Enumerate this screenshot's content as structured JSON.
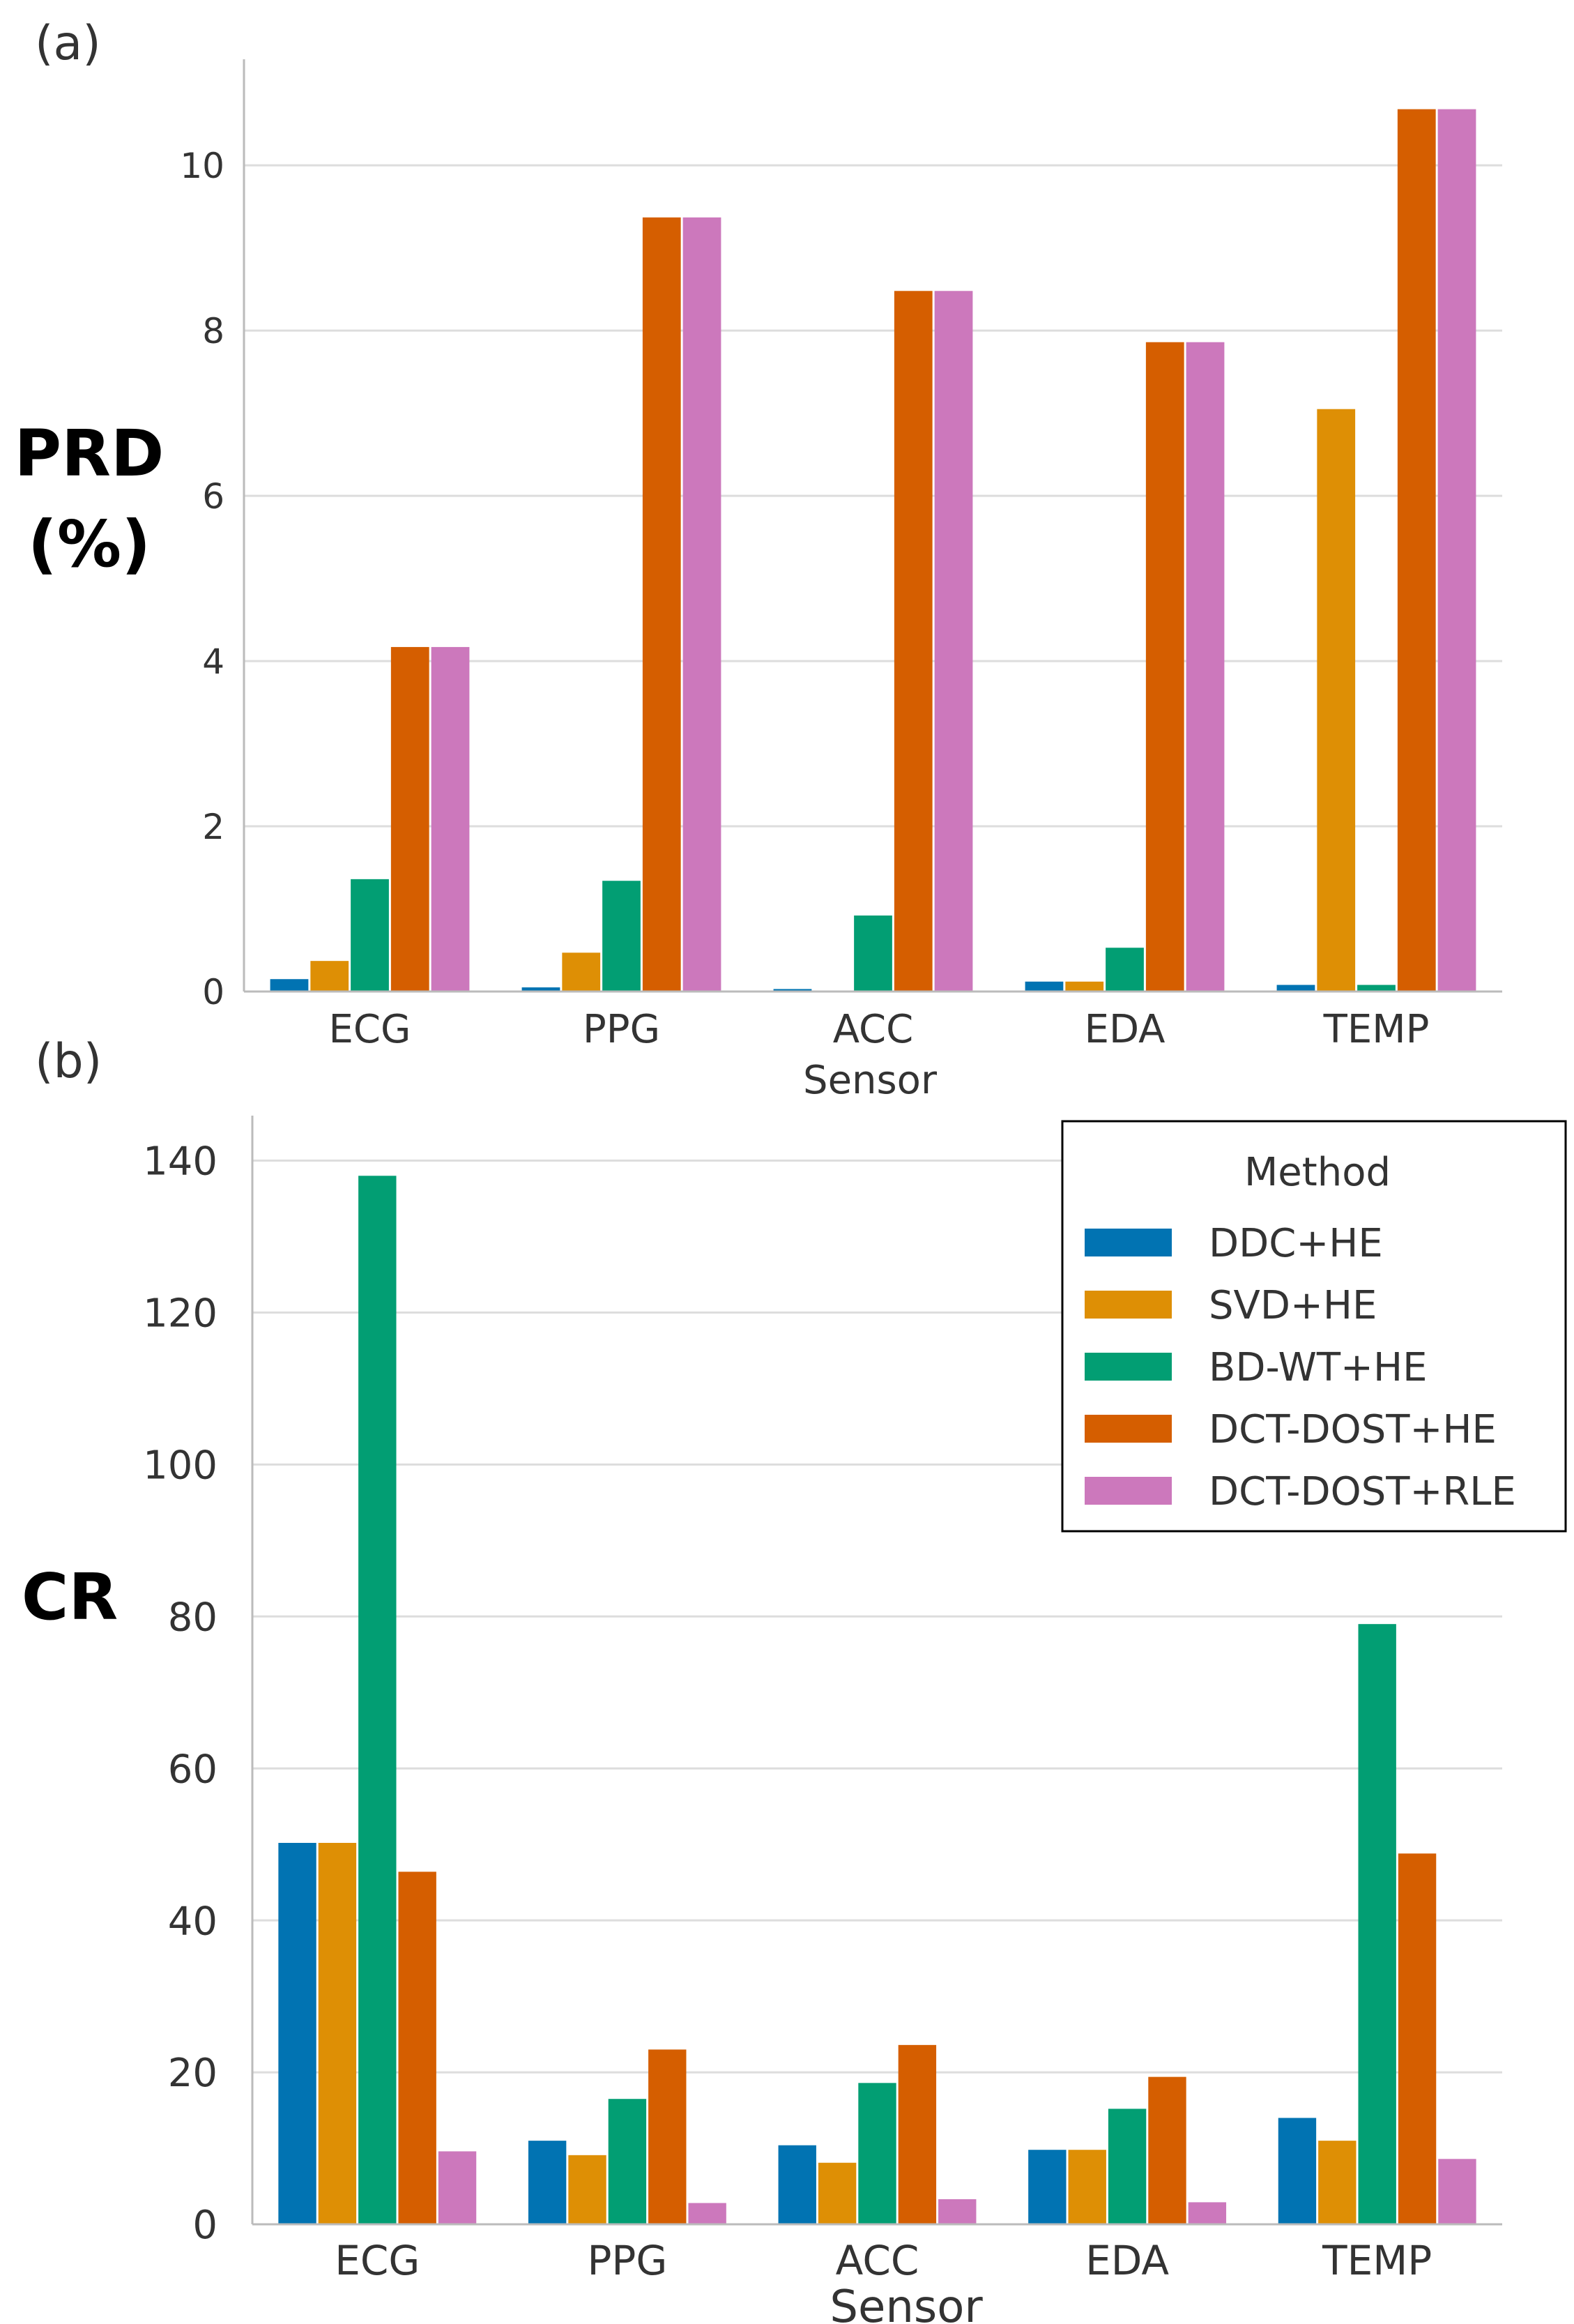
{
  "colors": {
    "DDC+HE": "#0173b2",
    "SVD+HE": "#de8f05",
    "BD-WT+HE": "#029e73",
    "DCT-DOST+HE": "#d55e00",
    "DCT-DOST+RLE": "#cc78bc",
    "grid": "#dddddd",
    "axis": "#bbbbbb"
  },
  "legend": {
    "title": "Method",
    "entries": [
      "DDC+HE",
      "SVD+HE",
      "BD-WT+HE",
      "DCT-DOST+HE",
      "DCT-DOST+RLE"
    ]
  },
  "chart_data": [
    {
      "panel_label": "(a)",
      "type": "bar",
      "ylabel_line1": "PRD",
      "ylabel_line2": "(%)",
      "xlabel": "Sensor",
      "categories": [
        "ECG",
        "PPG",
        "ACC",
        "EDA",
        "TEMP"
      ],
      "ylim": [
        0,
        11.2
      ],
      "yticks": [
        0,
        2,
        4,
        6,
        8,
        10
      ],
      "grid": "horizontal",
      "series": [
        {
          "name": "DDC+HE",
          "values": [
            0.15,
            0.05,
            0.03,
            0.12,
            0.08
          ]
        },
        {
          "name": "SVD+HE",
          "values": [
            0.37,
            0.47,
            0.0,
            0.12,
            7.05
          ]
        },
        {
          "name": "BD-WT+HE",
          "values": [
            1.36,
            1.34,
            0.92,
            0.53,
            0.08
          ]
        },
        {
          "name": "DCT-DOST+HE",
          "values": [
            4.17,
            9.37,
            8.48,
            7.86,
            10.68
          ]
        },
        {
          "name": "DCT-DOST+RLE",
          "values": [
            4.17,
            9.37,
            8.48,
            7.86,
            10.68
          ]
        }
      ]
    },
    {
      "panel_label": "(b)",
      "type": "bar",
      "ylabel": "CR",
      "xlabel": "Sensor",
      "categories": [
        "ECG",
        "PPG",
        "ACC",
        "EDA",
        "TEMP"
      ],
      "ylim": [
        0,
        145
      ],
      "yticks": [
        0,
        20,
        40,
        60,
        80,
        100,
        120,
        140
      ],
      "grid": "horizontal",
      "legend_position": "top-right",
      "series": [
        {
          "name": "DDC+HE",
          "values": [
            50.2,
            11.0,
            10.4,
            9.8,
            14.0
          ]
        },
        {
          "name": "SVD+HE",
          "values": [
            50.2,
            9.1,
            8.1,
            9.8,
            11.0
          ]
        },
        {
          "name": "BD-WT+HE",
          "values": [
            138.0,
            16.5,
            18.6,
            15.2,
            79.0
          ]
        },
        {
          "name": "DCT-DOST+HE",
          "values": [
            46.4,
            23.0,
            23.6,
            19.4,
            48.8
          ]
        },
        {
          "name": "DCT-DOST+RLE",
          "values": [
            9.6,
            2.8,
            3.3,
            2.9,
            8.6
          ]
        }
      ]
    }
  ]
}
